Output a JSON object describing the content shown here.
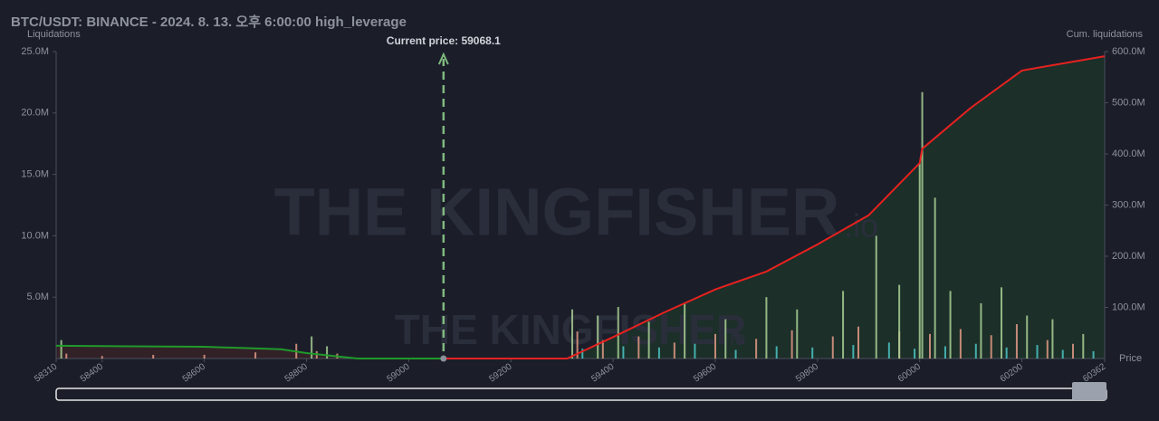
{
  "chart_data": {
    "type": "bar",
    "title": "BTC/USDT: BINANCE - 2024. 8. 13. 오후 6:00:00 high_leverage",
    "y_label": "Liquidations",
    "y2_label": "Cum. liquidations",
    "x_label": "Price",
    "watermark": {
      "text": "THE KINGFISHER",
      "suffix": ".io"
    },
    "annotation": {
      "value": 59068.1,
      "label": "Current price: 59068.1",
      "color": "#7fb87f"
    },
    "xlim": [
      58310,
      60362
    ],
    "xticks": [
      58310,
      58400,
      58600,
      58800,
      59000,
      59200,
      59400,
      59600,
      59800,
      60000,
      60200,
      60362
    ],
    "ylim": [
      0,
      25000000
    ],
    "yticks": [
      {
        "value": 5000000,
        "label": "5.0M"
      },
      {
        "value": 10000000,
        "label": "10.0M"
      },
      {
        "value": 15000000,
        "label": "15.0M"
      },
      {
        "value": 20000000,
        "label": "20.0M"
      },
      {
        "value": 25000000,
        "label": "25.0M"
      }
    ],
    "y2lim": [
      0,
      600000000
    ],
    "y2ticks": [
      {
        "value": 100000000,
        "label": "100.0M"
      },
      {
        "value": 200000000,
        "label": "200.0M"
      },
      {
        "value": 300000000,
        "label": "300.0M"
      },
      {
        "value": 400000000,
        "label": "400.0M"
      },
      {
        "value": 500000000,
        "label": "500.0M"
      },
      {
        "value": 600000000,
        "label": "600.0M"
      }
    ],
    "series": [
      {
        "type": "bar",
        "color": "#e39a85",
        "x": [
          58330,
          58400,
          58500,
          58600,
          58700,
          58780,
          58820,
          58860,
          59330,
          59380,
          59450,
          59520,
          59600,
          59680,
          59750,
          59830,
          59880,
          59960,
          60020,
          60080,
          60140,
          60190,
          60250,
          60300
        ],
        "values": [
          400000,
          200000,
          300000,
          300000,
          500000,
          1200000,
          600000,
          400000,
          2200000,
          1500000,
          1800000,
          1300000,
          2000000,
          1600000,
          2300000,
          1800000,
          2600000,
          2200000,
          2000000,
          2400000,
          1900000,
          2800000,
          1500000,
          1200000
        ]
      },
      {
        "type": "bar",
        "color": "#4cc4c4",
        "x": [
          59340,
          59420,
          59490,
          59560,
          59640,
          59720,
          59790,
          59870,
          59940,
          59990,
          60050,
          60110,
          60170,
          60230,
          60280,
          60340
        ],
        "values": [
          800000,
          1000000,
          900000,
          1200000,
          700000,
          1000000,
          900000,
          1100000,
          1300000,
          800000,
          1000000,
          1200000,
          900000,
          1100000,
          700000,
          600000
        ]
      },
      {
        "type": "bar",
        "color": "#a9cf94",
        "x": [
          58320,
          58810,
          58840,
          59320,
          59370,
          59410,
          59470,
          59540,
          59620,
          59700,
          59760,
          59850,
          59915,
          59960,
          60000,
          60005,
          60030,
          60060,
          60120,
          60160,
          60210,
          60260,
          60320
        ],
        "values": [
          1500000,
          1800000,
          1000000,
          4000000,
          3500000,
          4200000,
          3000000,
          4500000,
          3200000,
          5000000,
          4000000,
          5500000,
          10000000,
          6000000,
          15900000,
          21700000,
          13100000,
          5500000,
          4500000,
          5800000,
          3500000,
          3200000,
          2000000
        ]
      },
      {
        "type": "line",
        "axis": "y2",
        "color": "#1f9a2a",
        "fill": "#3a2228",
        "x": [
          58310,
          58600,
          58750,
          58800,
          58900,
          59068.1
        ],
        "values": [
          25000000,
          23000000,
          18000000,
          10600000,
          0,
          0
        ]
      },
      {
        "type": "line",
        "axis": "y2",
        "color": "#e8211f",
        "fill": "#1d3329",
        "x": [
          59068.1,
          59310,
          59400,
          59500,
          59600,
          59700,
          59800,
          59900,
          60000,
          60005,
          60100,
          60200,
          60362
        ],
        "values": [
          0,
          0,
          42000000,
          90000000,
          135000000,
          170000000,
          223000000,
          280000000,
          382000000,
          410000000,
          490000000,
          563000000,
          591000000
        ]
      }
    ]
  }
}
